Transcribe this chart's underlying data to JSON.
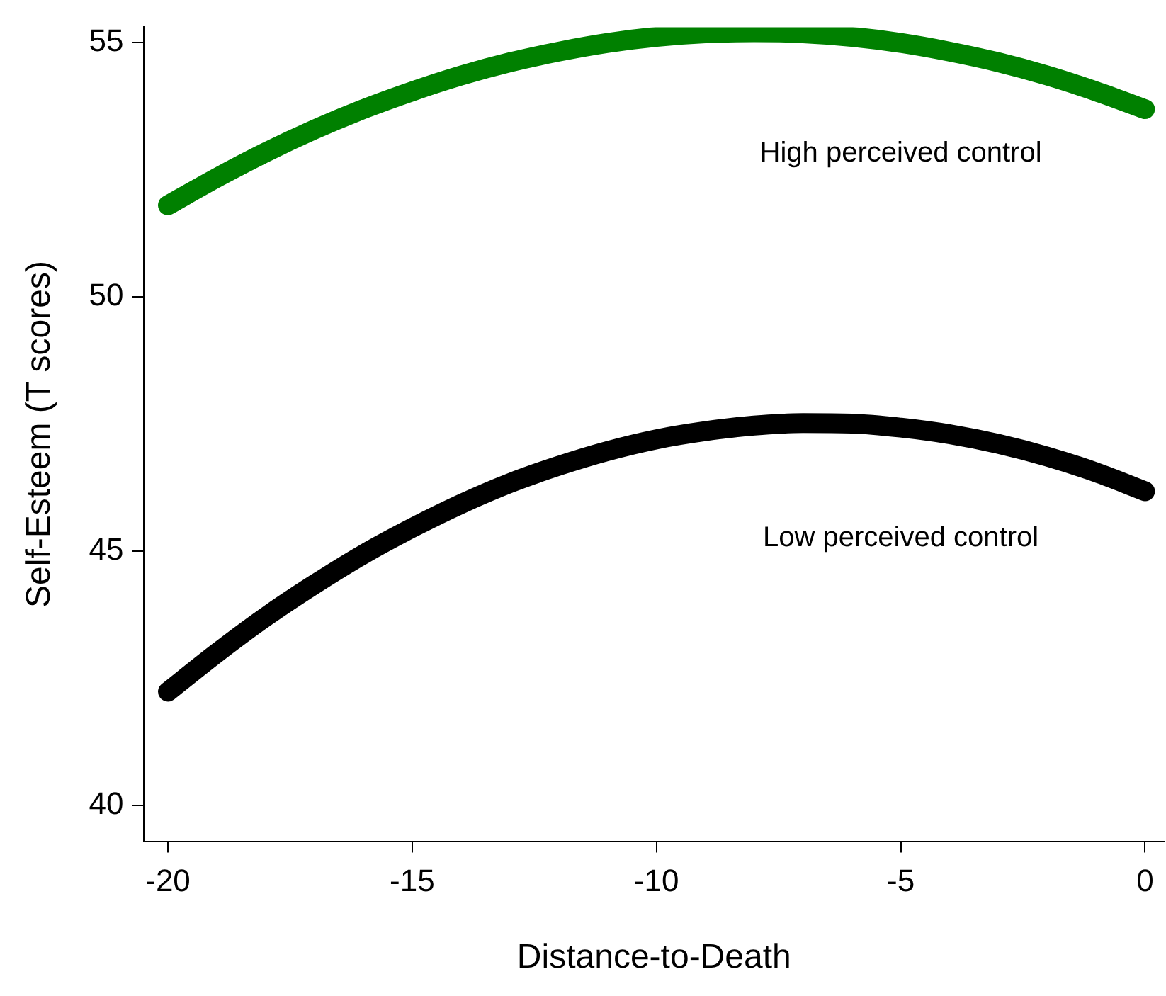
{
  "chart_data": {
    "type": "line",
    "xlabel": "Distance-to-Death",
    "ylabel": "Self-Esteem (T scores)",
    "x": [
      -20,
      -19,
      -18,
      -17,
      -16,
      -15,
      -14,
      -13,
      -12,
      -11,
      -10,
      -9,
      -8,
      -7,
      -6,
      -5,
      -4,
      -3,
      -2,
      -1,
      0
    ],
    "series": [
      {
        "name": "High perceived control",
        "color": "#008000",
        "values": [
          51.8,
          52.34,
          52.84,
          53.29,
          53.69,
          54.04,
          54.35,
          54.61,
          54.82,
          54.99,
          55.11,
          55.18,
          55.2,
          55.18,
          55.11,
          54.99,
          54.82,
          54.61,
          54.35,
          54.04,
          53.69
        ]
      },
      {
        "name": "Low perceived control",
        "color": "#000000",
        "values": [
          42.24,
          43.0,
          43.71,
          44.35,
          44.94,
          45.46,
          45.93,
          46.34,
          46.68,
          46.97,
          47.2,
          47.36,
          47.47,
          47.52,
          47.51,
          47.43,
          47.3,
          47.11,
          46.86,
          46.55,
          46.18
        ]
      }
    ],
    "xlim": [
      -20.5,
      0.4
    ],
    "xticks": [
      -20,
      -15,
      -10,
      -5,
      0
    ],
    "ylim": [
      39.3,
      55.3
    ],
    "yticks": [
      40,
      45,
      50,
      55
    ],
    "grid": false,
    "legend": false,
    "marker": "none",
    "line_style": "solid"
  }
}
